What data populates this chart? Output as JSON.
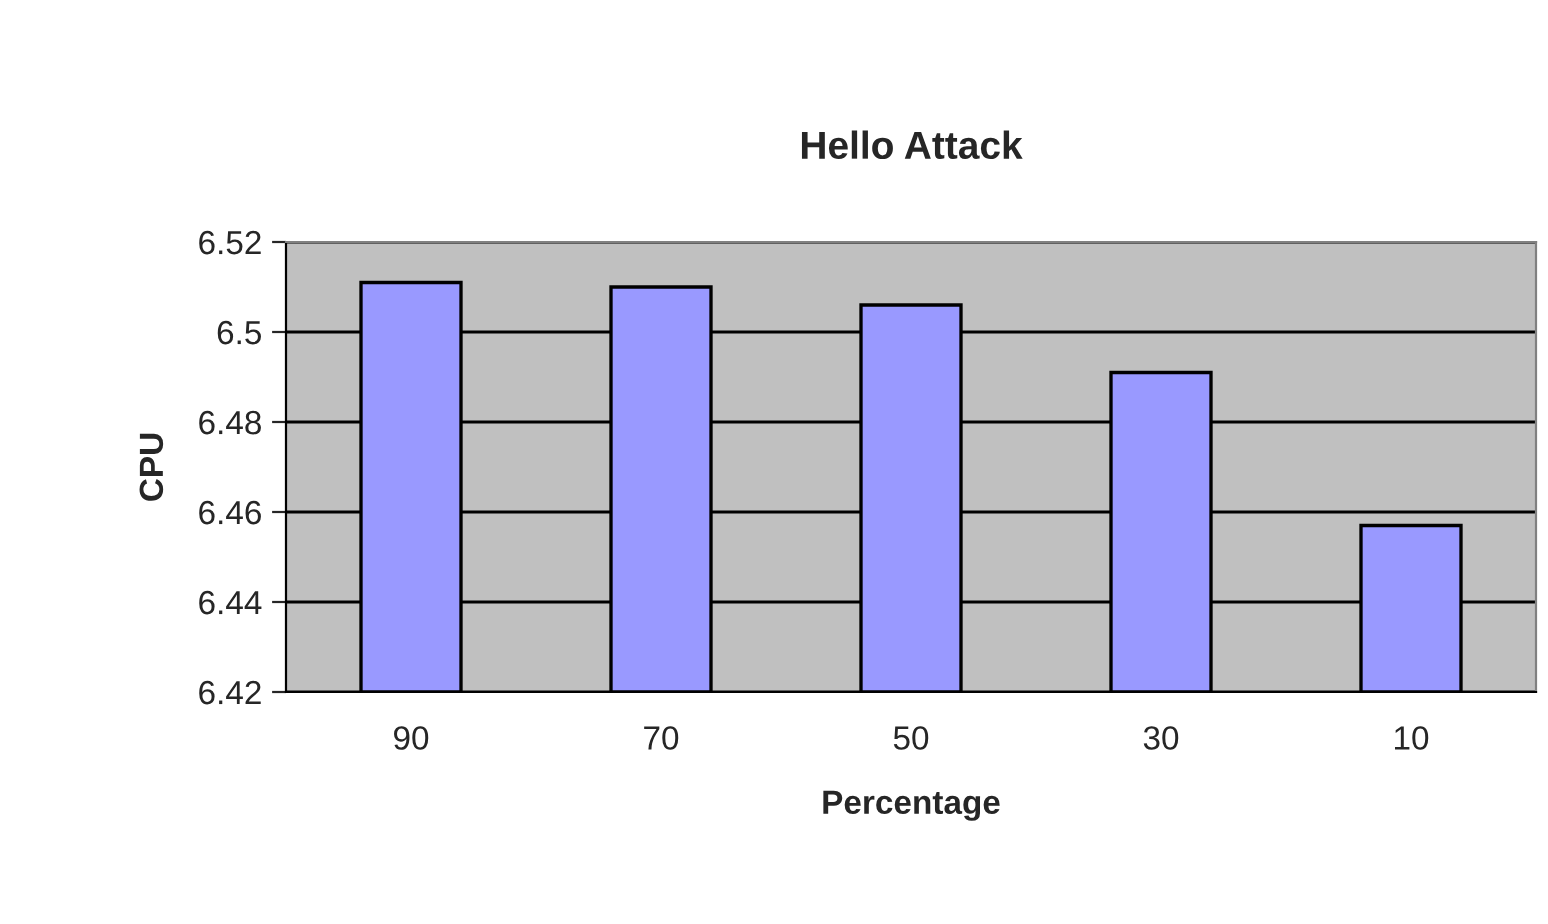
{
  "chart_data": {
    "type": "bar",
    "title": "Hello Attack",
    "xlabel": "Percentage",
    "ylabel": "CPU",
    "categories": [
      "90",
      "70",
      "50",
      "30",
      "10"
    ],
    "values": [
      6.511,
      6.51,
      6.506,
      6.491,
      6.457
    ],
    "color": "#9999ff",
    "ylim": [
      6.42,
      6.52
    ],
    "yticks": [
      {
        "value": 6.42,
        "label": "6.42"
      },
      {
        "value": 6.44,
        "label": "6.44"
      },
      {
        "value": 6.46,
        "label": "6.46"
      },
      {
        "value": 6.48,
        "label": "6.48"
      },
      {
        "value": 6.5,
        "label": "6.5"
      },
      {
        "value": 6.52,
        "label": "6.52"
      }
    ],
    "grid": "y",
    "legend": false
  }
}
